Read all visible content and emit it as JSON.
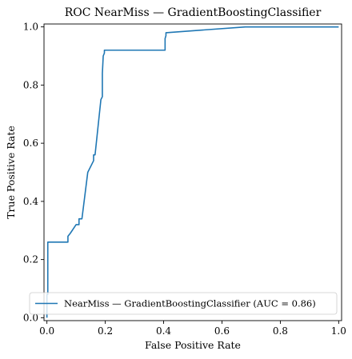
{
  "chart_data": {
    "type": "line",
    "title": "ROC NearMiss — GradientBoostingClassifier",
    "xlabel": "False Positive Rate",
    "ylabel": "True Positive Rate",
    "xlim": [
      -0.01,
      1.01
    ],
    "ylim": [
      -0.01,
      1.01
    ],
    "xticks": [
      0.0,
      0.2,
      0.4,
      0.6,
      0.8,
      1.0
    ],
    "yticks": [
      0.0,
      0.2,
      0.4,
      0.6,
      0.8,
      1.0
    ],
    "xtick_labels": [
      "0.0",
      "0.2",
      "0.4",
      "0.6",
      "0.8",
      "1.0"
    ],
    "ytick_labels": [
      "0.0",
      "0.2",
      "0.4",
      "0.6",
      "0.8",
      "1.0"
    ],
    "grid": false,
    "legend_position": "lower-right",
    "series": [
      {
        "name": "NearMiss — GradientBoostingClassifier (AUC = 0.86)",
        "color": "#1f77b4",
        "x": [
          0.0,
          0.0,
          0.003,
          0.003,
          0.072,
          0.072,
          0.08,
          0.1,
          0.11,
          0.11,
          0.12,
          0.14,
          0.16,
          0.16,
          0.165,
          0.185,
          0.19,
          0.19,
          0.193,
          0.197,
          0.197,
          0.405,
          0.405,
          0.408,
          0.408,
          0.68,
          1.0
        ],
        "y": [
          0.0,
          0.08,
          0.08,
          0.26,
          0.26,
          0.28,
          0.29,
          0.32,
          0.32,
          0.34,
          0.34,
          0.5,
          0.54,
          0.56,
          0.56,
          0.75,
          0.76,
          0.84,
          0.9,
          0.91,
          0.92,
          0.92,
          0.96,
          0.97,
          0.98,
          1.0,
          1.0
        ]
      }
    ]
  }
}
